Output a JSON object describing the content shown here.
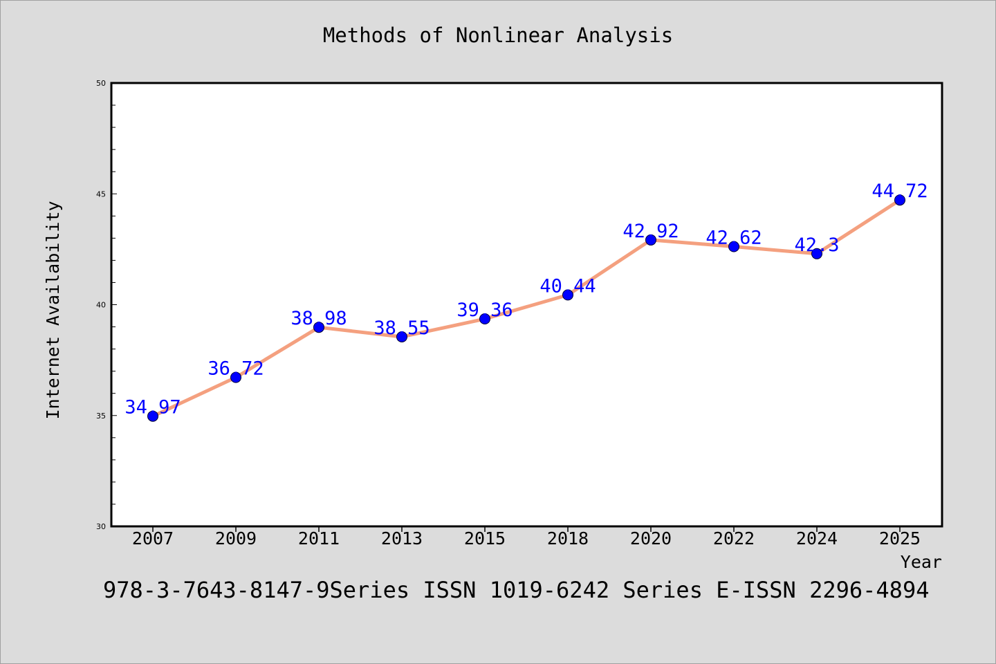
{
  "page": {
    "title": "Methods of Nonlinear Analysis",
    "footer": "978-3-7643-8147-9Series ISSN 1019-6242 Series E-ISSN 2296-4894"
  },
  "chart_data": {
    "type": "line",
    "title": "Methods of Nonlinear Analysis",
    "xlabel": "Year",
    "ylabel": "Internet Availability",
    "categories": [
      "2007",
      "2009",
      "2011",
      "2013",
      "2015",
      "2018",
      "2020",
      "2022",
      "2024",
      "2025"
    ],
    "series": [
      {
        "values": [
          34.97,
          36.72,
          38.98,
          38.55,
          39.36,
          40.44,
          42.92,
          42.62,
          42.3,
          44.72
        ],
        "data_labels": [
          "34.97",
          "36.72",
          "38.98",
          "38.55",
          "39.36",
          "40.44",
          "42.92",
          "42.62",
          "42.3",
          "44.72"
        ]
      }
    ],
    "ylim": [
      30,
      50
    ],
    "yticks": [
      30,
      35,
      40,
      45,
      50
    ],
    "grid": false,
    "legend": "none",
    "colors": {
      "line": "#f4a07f",
      "marker": "#0000ff",
      "data_label": "#0000ff",
      "plot_background": "#ffffff",
      "page_background": "#dcdcdc"
    }
  }
}
